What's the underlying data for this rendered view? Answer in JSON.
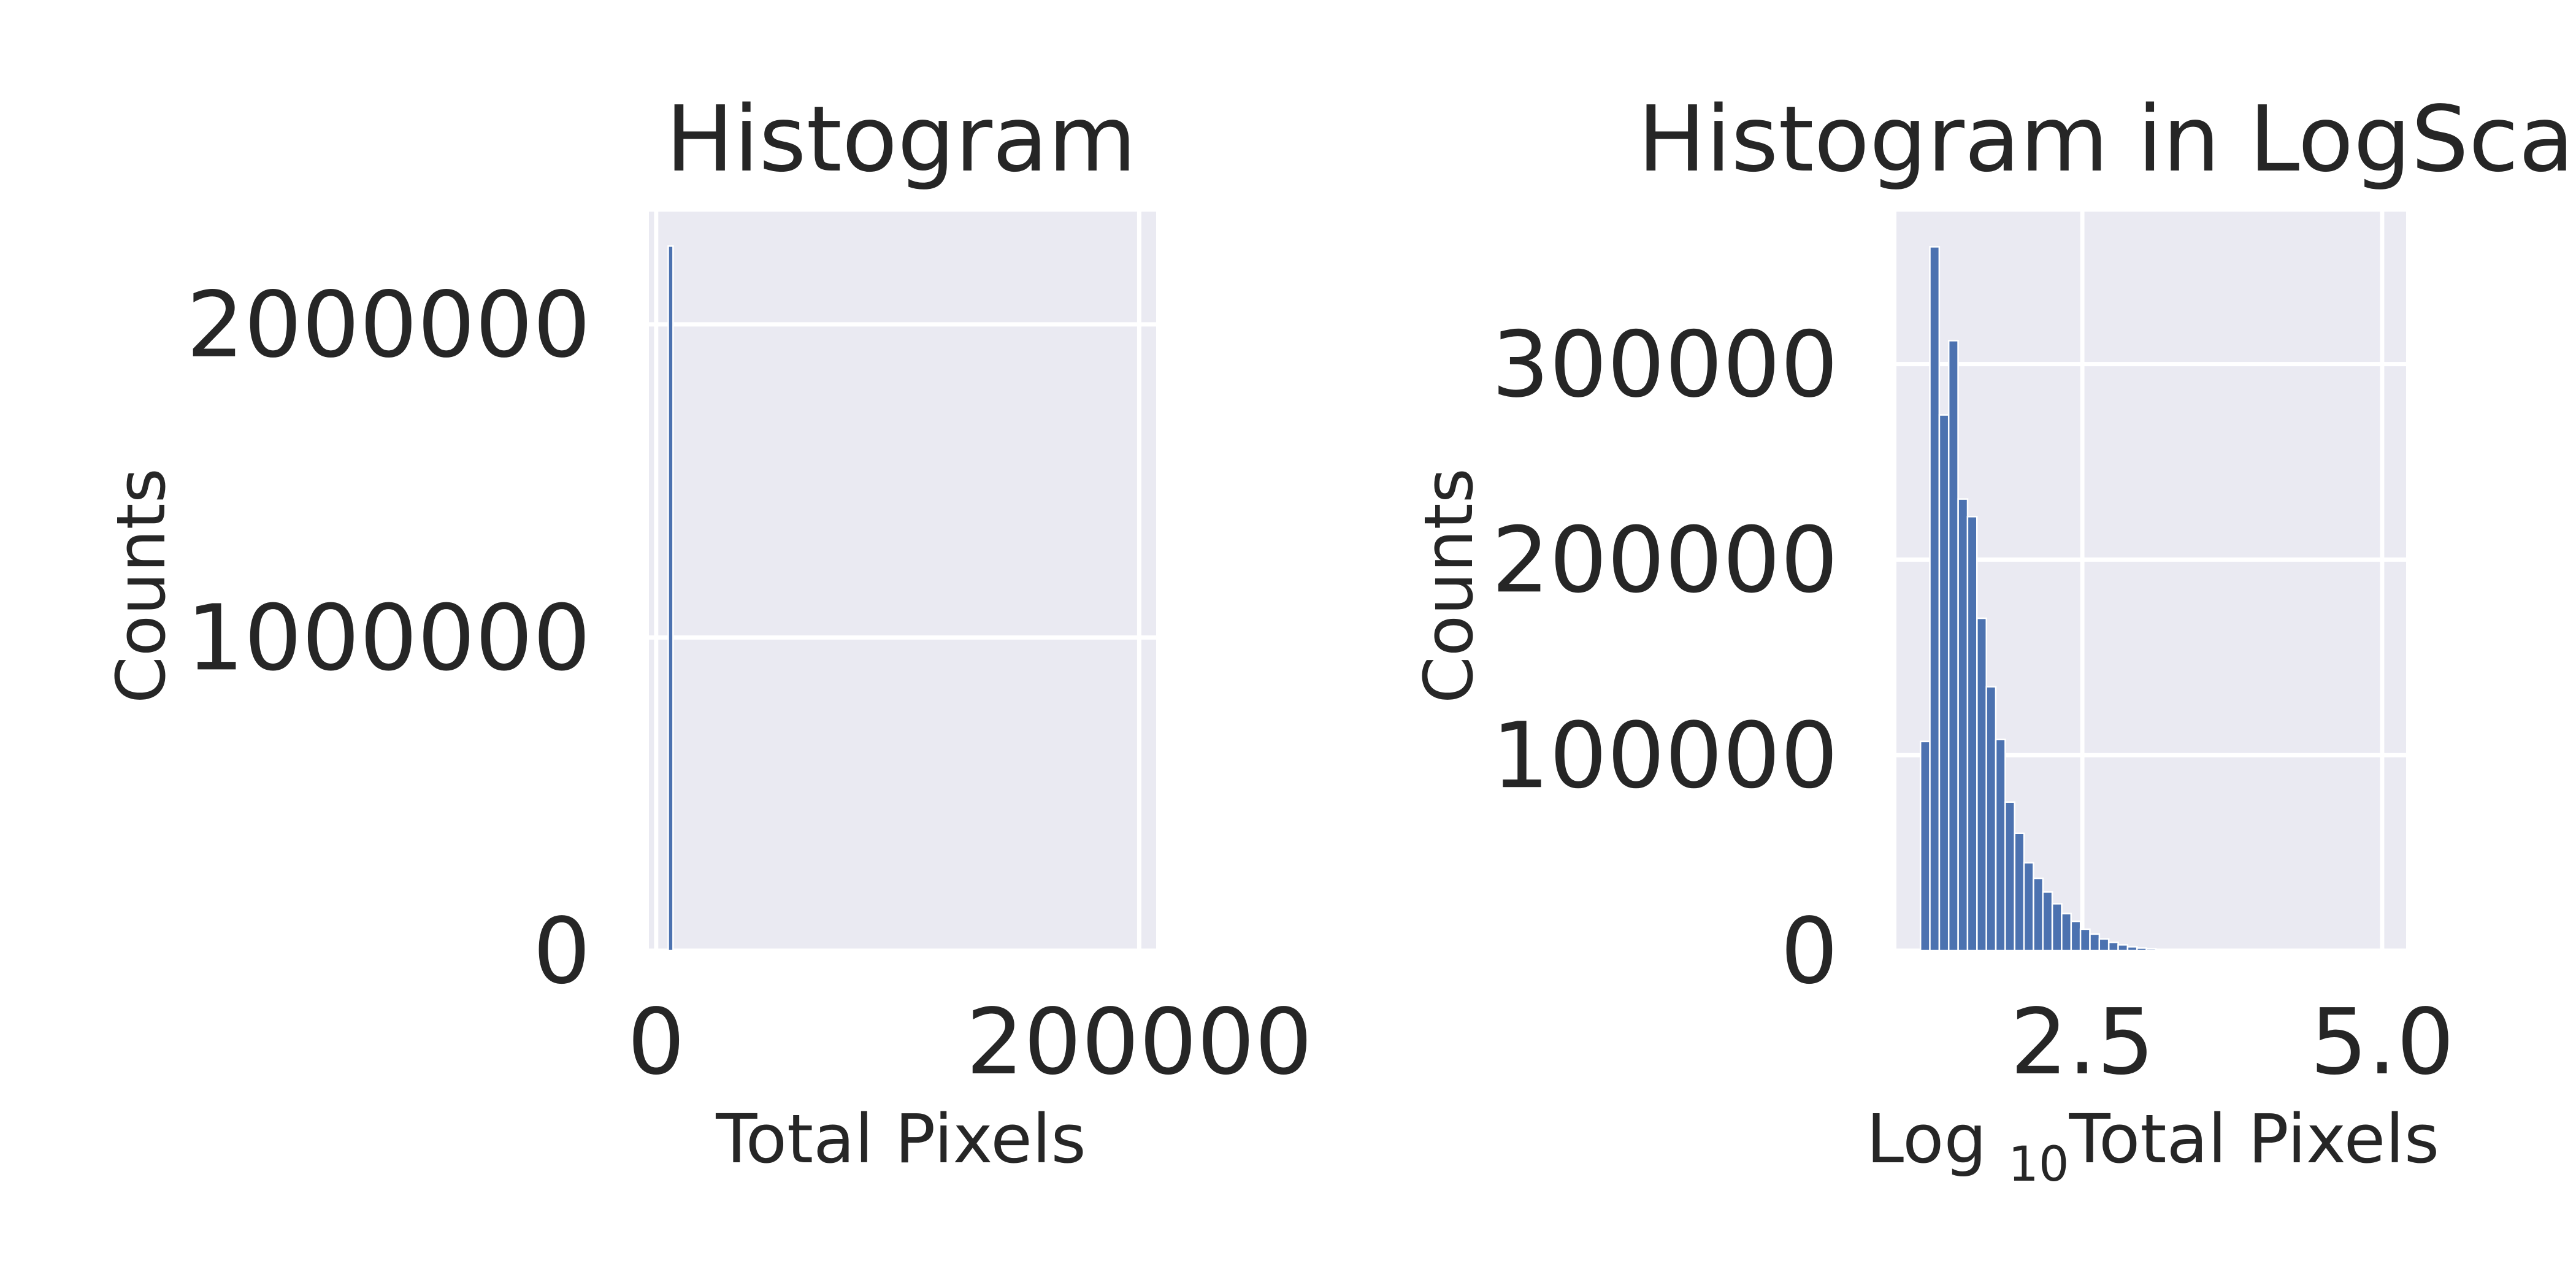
{
  "chart_data": [
    {
      "type": "bar",
      "title": "Histogram",
      "xlabel": "Total Pixels",
      "ylabel": "Counts",
      "xlim": [
        -3000,
        207000
      ],
      "ylim": [
        0,
        2360000
      ],
      "xticks": [
        0,
        200000
      ],
      "xtick_labels": [
        "0",
        "200000"
      ],
      "yticks": [
        0,
        1000000,
        2000000
      ],
      "ytick_labels": [
        "0",
        "1000000",
        "2000000"
      ],
      "bin_width": 2000,
      "x": [
        6000
      ],
      "values": [
        2250000
      ],
      "grid": true,
      "colors": {
        "bar": "#4c72b0",
        "background": "#eaeaf2",
        "grid": "#ffffff"
      }
    },
    {
      "type": "bar",
      "title": "Histogram in LogScale",
      "xlabel": "Log ",
      "xlabel_sub": "10",
      "xlabel_suffix": "Total Pixels",
      "ylabel": "Counts",
      "xlim": [
        0.95,
        5.2
      ],
      "ylim": [
        0,
        378000
      ],
      "xticks": [
        2.5,
        5.0
      ],
      "xtick_labels": [
        "2.5",
        "5.0"
      ],
      "yticks": [
        0,
        100000,
        200000,
        300000
      ],
      "ytick_labels": [
        "0",
        "100000",
        "200000",
        "300000"
      ],
      "bin_width": 0.0785,
      "x": [
        1.19,
        1.268,
        1.347,
        1.425,
        1.504,
        1.582,
        1.661,
        1.739,
        1.818,
        1.896,
        1.975,
        2.053,
        2.132,
        2.21,
        2.289,
        2.367,
        2.446,
        2.524,
        2.603,
        2.681,
        2.76,
        2.838,
        2.917,
        2.995,
        3.074,
        3.152,
        3.231,
        3.309,
        3.388,
        3.466,
        3.545,
        3.623,
        3.702,
        3.78,
        3.859,
        3.937,
        4.016,
        4.094,
        4.173,
        4.251,
        4.33,
        4.408,
        4.487,
        4.565,
        4.644,
        4.722,
        4.801,
        4.879,
        4.958,
        5.036
      ],
      "values": [
        107000,
        360000,
        274000,
        312000,
        231000,
        222000,
        170000,
        135000,
        108000,
        76000,
        60000,
        45000,
        37000,
        30000,
        24000,
        19000,
        15000,
        11000,
        8500,
        6000,
        4200,
        3000,
        2000,
        1400,
        900,
        600,
        400,
        250,
        150,
        90,
        50,
        30,
        20,
        10,
        6,
        4,
        2,
        1,
        1,
        0,
        0,
        0,
        0,
        0,
        0,
        0,
        0,
        0,
        0,
        0
      ],
      "grid": true,
      "colors": {
        "bar": "#4c72b0",
        "background": "#eaeaf2",
        "grid": "#ffffff"
      }
    }
  ]
}
